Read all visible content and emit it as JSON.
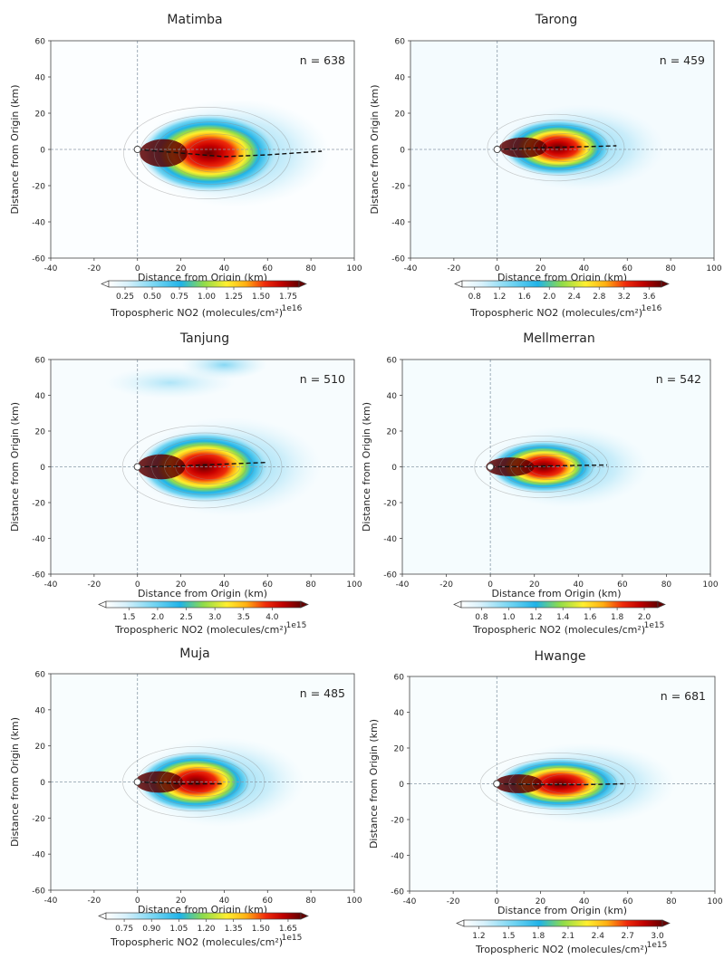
{
  "chart_data": [
    {
      "type": "heatmap",
      "title": "Matimba",
      "n_label": "n = 638",
      "xlabel": "Distance from Origin (km)",
      "ylabel": "Distance from Origin (km)",
      "xlim": [
        -40,
        100
      ],
      "ylim": [
        -60,
        60
      ],
      "xticks": [
        -40,
        -20,
        0,
        20,
        40,
        60,
        80,
        100
      ],
      "yticks": [
        -60,
        -40,
        -20,
        0,
        20,
        40,
        60
      ],
      "colorbar": {
        "label": "Tropospheric NO2 (molecules/cm²)",
        "exponent": "1e16",
        "ticks": [
          "0.25",
          "0.50",
          "0.75",
          "1.00",
          "1.25",
          "1.50",
          "1.75"
        ],
        "range": [
          0.1,
          1.85
        ]
      },
      "plume": {
        "center": [
          12,
          -2
        ],
        "x_end": 62,
        "half_width": 22,
        "background_level": 0.05
      },
      "trajectory": {
        "x": [
          0,
          20,
          40,
          60,
          85
        ],
        "y": [
          0,
          -2,
          -4,
          -3,
          -1
        ]
      },
      "secondary_source": null
    },
    {
      "type": "heatmap",
      "title": "Tarong",
      "n_label": "n = 459",
      "xlabel": "Distance from Origin (km)",
      "ylabel": "Distance from Origin (km)",
      "xlim": [
        -40,
        100
      ],
      "ylim": [
        -60,
        60
      ],
      "xticks": [
        -40,
        -20,
        0,
        20,
        40,
        60,
        80,
        100
      ],
      "yticks": [
        -60,
        -40,
        -20,
        0,
        20,
        40,
        60
      ],
      "colorbar": {
        "label": "Tropospheric NO2 (molecules/cm²)",
        "exponent": "1e16",
        "ticks": [
          "0.8",
          "1.2",
          "1.6",
          "2.0",
          "2.4",
          "2.8",
          "3.2",
          "3.6"
        ],
        "range": [
          0.6,
          3.8
        ]
      },
      "plume": {
        "center": [
          12,
          1
        ],
        "x_end": 50,
        "half_width": 16,
        "background_level": 0.22
      },
      "trajectory": {
        "x": [
          0,
          20,
          40,
          55
        ],
        "y": [
          0,
          1,
          1.5,
          2
        ]
      },
      "secondary_source": null
    },
    {
      "type": "heatmap",
      "title": "Tanjung",
      "n_label": "n = 510",
      "xlabel": "Distance from Origin (km)",
      "ylabel": "Distance from Origin (km)",
      "xlim": [
        -40,
        100
      ],
      "ylim": [
        -60,
        60
      ],
      "xticks": [
        -40,
        -20,
        0,
        20,
        40,
        60,
        80,
        100
      ],
      "yticks": [
        -60,
        -40,
        -20,
        0,
        20,
        40,
        60
      ],
      "colorbar": {
        "label": "Tropospheric NO2 (molecules/cm²)",
        "exponent": "1e15",
        "ticks": [
          "1.5",
          "2.0",
          "2.5",
          "3.0",
          "3.5",
          "4.0"
        ],
        "range": [
          1.1,
          4.5
        ]
      },
      "plume": {
        "center": [
          11,
          0
        ],
        "x_end": 58,
        "half_width": 20,
        "background_level": 0.16
      },
      "trajectory": {
        "x": [
          0,
          20,
          40,
          60
        ],
        "y": [
          0,
          0.5,
          1.5,
          2.5
        ]
      },
      "secondary_source": {
        "center": [
          40,
          57
        ],
        "width": 40,
        "height": 10,
        "level": 0.3
      }
    },
    {
      "type": "heatmap",
      "title": "Mellmerran",
      "n_label": "n = 542",
      "xlabel": "Distance from Origin (km)",
      "ylabel": "Distance from Origin (km)",
      "xlim": [
        -40,
        100
      ],
      "ylim": [
        -60,
        60
      ],
      "xticks": [
        -40,
        -20,
        0,
        20,
        40,
        60,
        80,
        100
      ],
      "yticks": [
        -60,
        -40,
        -20,
        0,
        20,
        40,
        60
      ],
      "colorbar": {
        "label": "Tropospheric NO2 (molecules/cm²)",
        "exponent": "1e15",
        "ticks": [
          "0.8",
          "1.0",
          "1.2",
          "1.4",
          "1.6",
          "1.8",
          "2.0"
        ],
        "range": [
          0.65,
          2.1
        ]
      },
      "plume": {
        "center": [
          9,
          0
        ],
        "x_end": 45,
        "half_width": 15,
        "background_level": 0.2
      },
      "trajectory": {
        "x": [
          0,
          20,
          40,
          53
        ],
        "y": [
          0,
          0.3,
          0.8,
          1
        ]
      },
      "secondary_source": null
    },
    {
      "type": "heatmap",
      "title": "Muja",
      "n_label": "n = 485",
      "xlabel": "Distance from Origin (km)",
      "ylabel": "Distance from Origin (km)",
      "xlim": [
        -40,
        100
      ],
      "ylim": [
        -60,
        60
      ],
      "xticks": [
        -40,
        -20,
        0,
        20,
        40,
        60,
        80,
        100
      ],
      "yticks": [
        -60,
        -40,
        -20,
        0,
        20,
        40,
        60
      ],
      "colorbar": {
        "label": "Tropospheric NO2 (molecules/cm²)",
        "exponent": "1e15",
        "ticks": [
          "0.75",
          "0.90",
          "1.05",
          "1.20",
          "1.35",
          "1.50",
          "1.65"
        ],
        "range": [
          0.65,
          1.72
        ]
      },
      "plume": {
        "center": [
          10,
          0
        ],
        "x_end": 50,
        "half_width": 17,
        "background_level": 0.14
      },
      "trajectory": {
        "x": [
          0,
          20,
          40
        ],
        "y": [
          0,
          -1,
          -1
        ]
      },
      "secondary_source": null
    },
    {
      "type": "heatmap",
      "title": "Hwange",
      "n_label": "n = 681",
      "xlabel": "Distance from Origin (km)",
      "ylabel": "Distance from Origin (km)",
      "xlim": [
        -40,
        100
      ],
      "ylim": [
        -60,
        60
      ],
      "xticks": [
        -40,
        -20,
        0,
        20,
        40,
        60,
        80,
        100
      ],
      "yticks": [
        -60,
        -40,
        -20,
        0,
        20,
        40,
        60
      ],
      "colorbar": {
        "label": "Tropospheric NO2 (molecules/cm²)",
        "exponent": "1e15",
        "ticks": [
          "1.2",
          "1.5",
          "1.8",
          "2.1",
          "2.4",
          "2.7",
          "3.0"
        ],
        "range": [
          1.05,
          3.05
        ]
      },
      "plume": {
        "center": [
          10,
          0
        ],
        "x_end": 55,
        "half_width": 15,
        "background_level": 0.14
      },
      "trajectory": {
        "x": [
          0,
          20,
          40,
          58
        ],
        "y": [
          0,
          -0.5,
          -0.5,
          0
        ]
      },
      "secondary_source": null
    }
  ]
}
